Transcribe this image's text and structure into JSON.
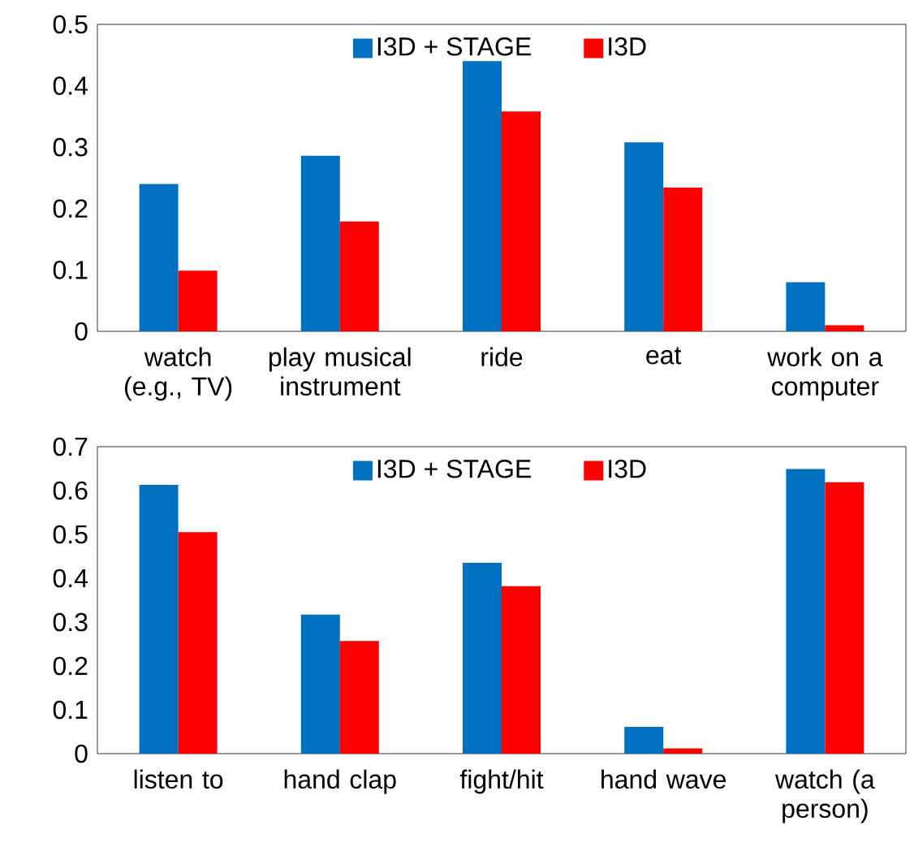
{
  "chart_data": [
    {
      "type": "bar",
      "categories": [
        "watch (e.g., TV)",
        "play musical instrument",
        "ride",
        "eat",
        "work on a computer"
      ],
      "series": [
        {
          "name": "I3D + STAGE",
          "color": "#0070c0",
          "values": [
            0.24,
            0.286,
            0.44,
            0.308,
            0.08
          ]
        },
        {
          "name": "I3D",
          "color": "#ff0000",
          "values": [
            0.099,
            0.179,
            0.358,
            0.234,
            0.01
          ]
        }
      ],
      "ylim": [
        0,
        0.5
      ],
      "yticks": [
        0,
        0.1,
        0.2,
        0.3,
        0.4,
        0.5
      ],
      "legend": "top",
      "grid": false
    },
    {
      "type": "bar",
      "categories": [
        "listen to",
        "hand clap",
        "fight/hit",
        "hand wave",
        "watch (a person)"
      ],
      "series": [
        {
          "name": "I3D + STAGE",
          "color": "#0070c0",
          "values": [
            0.613,
            0.317,
            0.435,
            0.061,
            0.649
          ]
        },
        {
          "name": "I3D",
          "color": "#ff0000",
          "values": [
            0.505,
            0.257,
            0.382,
            0.012,
            0.619
          ]
        }
      ],
      "ylim": [
        0,
        0.7
      ],
      "yticks": [
        0,
        0.1,
        0.2,
        0.3,
        0.4,
        0.5,
        0.6,
        0.7
      ],
      "legend": "top",
      "grid": false
    }
  ]
}
